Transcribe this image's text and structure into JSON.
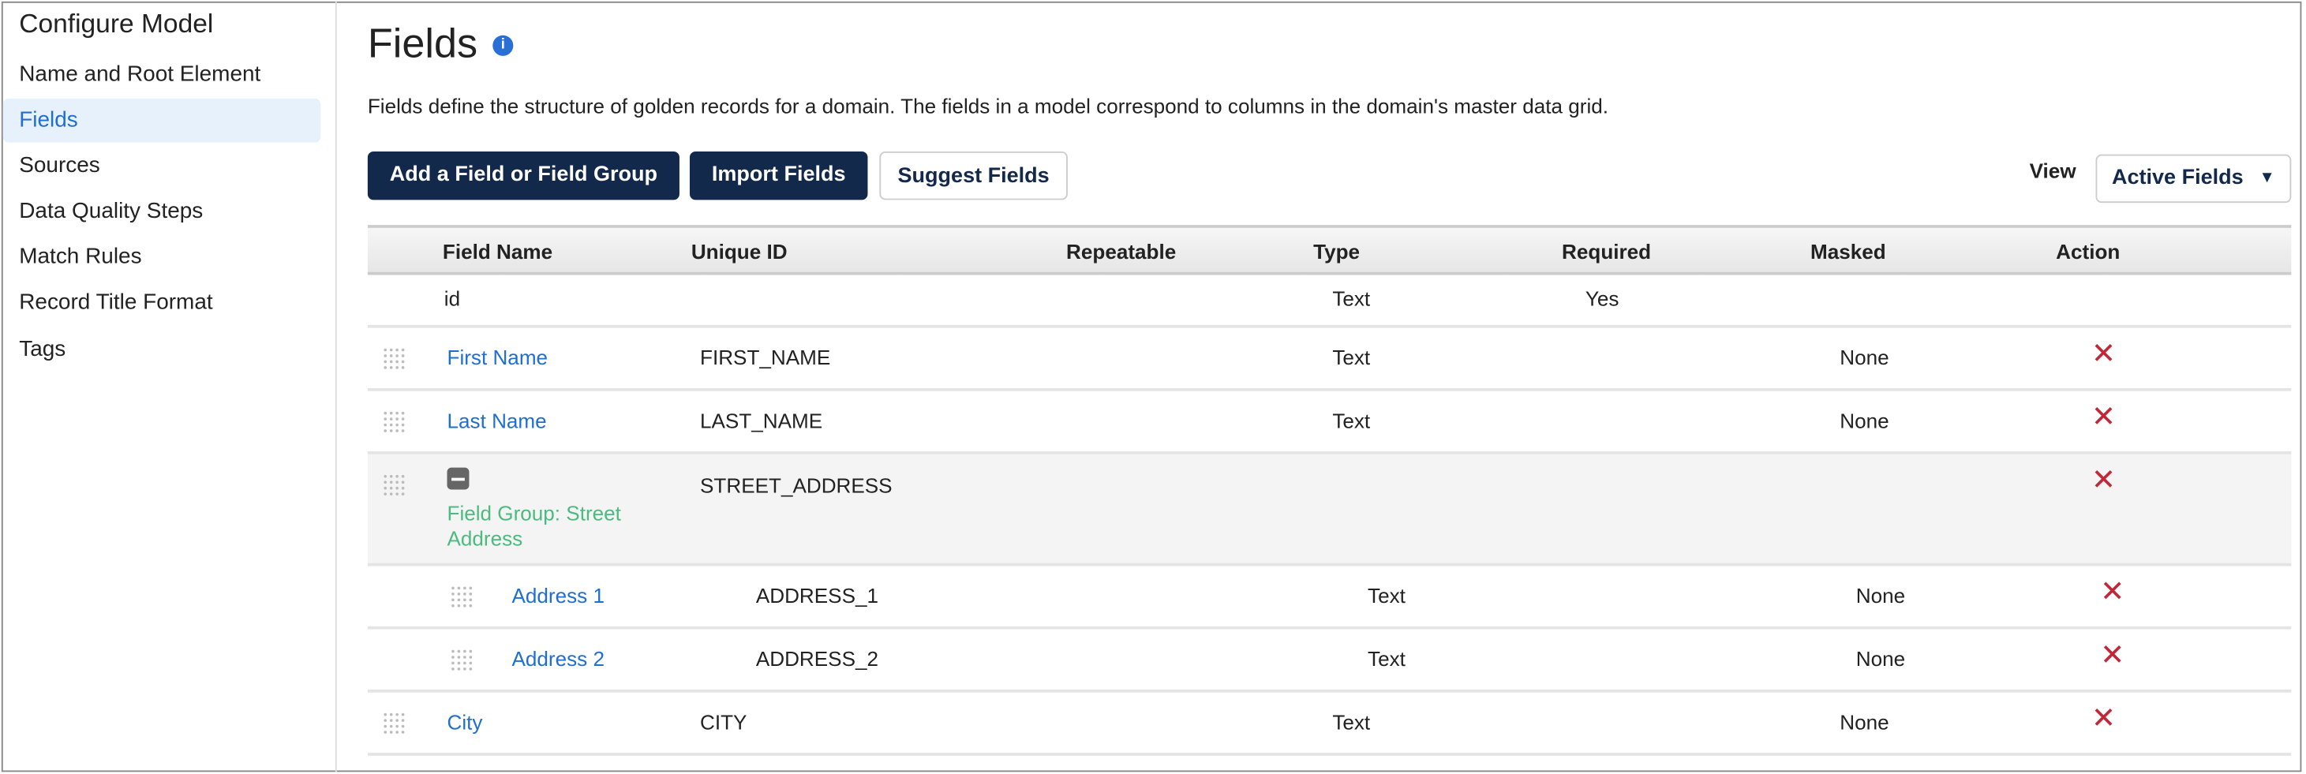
{
  "sidebar": {
    "title": "Configure Model",
    "items": [
      {
        "label": "Name and Root Element"
      },
      {
        "label": "Fields",
        "active": true
      },
      {
        "label": "Sources"
      },
      {
        "label": "Data Quality Steps"
      },
      {
        "label": "Match Rules"
      },
      {
        "label": "Record Title Format"
      },
      {
        "label": "Tags"
      }
    ]
  },
  "main": {
    "title": "Fields",
    "info_icon": "i",
    "description": "Fields define the structure of golden records for a domain. The fields in a model correspond to columns in the domain's master data grid.",
    "buttons": {
      "add": "Add a Field or Field Group",
      "import": "Import Fields",
      "suggest": "Suggest Fields"
    },
    "view_label": "View",
    "view_select": "Active Fields",
    "view_caret": "▼"
  },
  "table": {
    "headers": [
      "Field Name",
      "Unique ID",
      "Repeatable",
      "Type",
      "Required",
      "Masked",
      "Action"
    ],
    "rows": [
      {
        "name": "id",
        "unique_id": "",
        "type": "Text",
        "required": "Yes",
        "masked": ""
      },
      {
        "name": "First Name",
        "unique_id": "FIRST_NAME",
        "type": "Text",
        "required": "",
        "masked": "None",
        "delete": "✕"
      },
      {
        "name": "Last Name",
        "unique_id": "LAST_NAME",
        "type": "Text",
        "required": "",
        "masked": "None",
        "delete": "✕"
      },
      {
        "name": "Field Group: Street Address",
        "unique_id": "STREET_ADDRESS",
        "type": "",
        "required": "",
        "masked": "",
        "delete": "✕",
        "group": true
      },
      {
        "name": "Address 1",
        "unique_id": "ADDRESS_1",
        "type": "Text",
        "required": "",
        "masked": "None",
        "delete": "✕",
        "child": true
      },
      {
        "name": "Address 2",
        "unique_id": "ADDRESS_2",
        "type": "Text",
        "required": "",
        "masked": "None",
        "delete": "✕",
        "child": true
      },
      {
        "name": "City",
        "unique_id": "CITY",
        "type": "Text",
        "required": "",
        "masked": "None",
        "delete": "✕"
      }
    ]
  },
  "colors": {
    "primary": "#13294b",
    "link": "#1f6fd1",
    "group": "#4cbb7f",
    "delete": "#c0283a",
    "active_bg": "#e7f1fc"
  }
}
